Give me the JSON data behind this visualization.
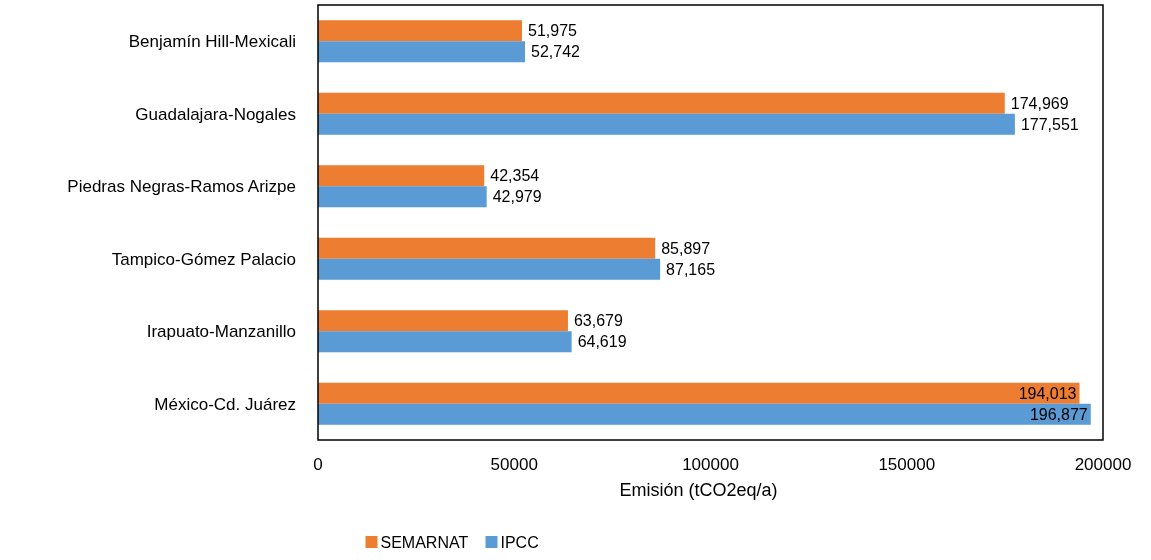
{
  "chart_data": {
    "type": "bar",
    "orientation": "horizontal",
    "xlabel": "Emisión (tCO2eq/a)",
    "categories": [
      "Benjamín Hill-Mexicali",
      "Guadalajara-Nogales",
      "Piedras Negras-Ramos Arizpe",
      "Tampico-Gómez Palacio",
      "Irapuato-Manzanillo",
      "México-Cd. Juárez"
    ],
    "series": [
      {
        "name": "SEMARNAT",
        "color": "#ed7d31",
        "values": [
          51975,
          174969,
          42354,
          85897,
          63679,
          194013
        ],
        "value_labels": [
          "51,975",
          "174,969",
          "42,354",
          "85,897",
          "63,679",
          "194,013"
        ]
      },
      {
        "name": "IPCC",
        "color": "#5b9bd5",
        "values": [
          52742,
          177551,
          42979,
          87165,
          64619,
          196877
        ],
        "value_labels": [
          "52,742",
          "177,551",
          "42,979",
          "87,165",
          "64,619",
          "196,877"
        ]
      }
    ],
    "xlim": [
      0,
      200000
    ],
    "xticks": [
      0,
      50000,
      100000,
      150000,
      200000
    ],
    "legend": "bottom",
    "grid": false
  }
}
